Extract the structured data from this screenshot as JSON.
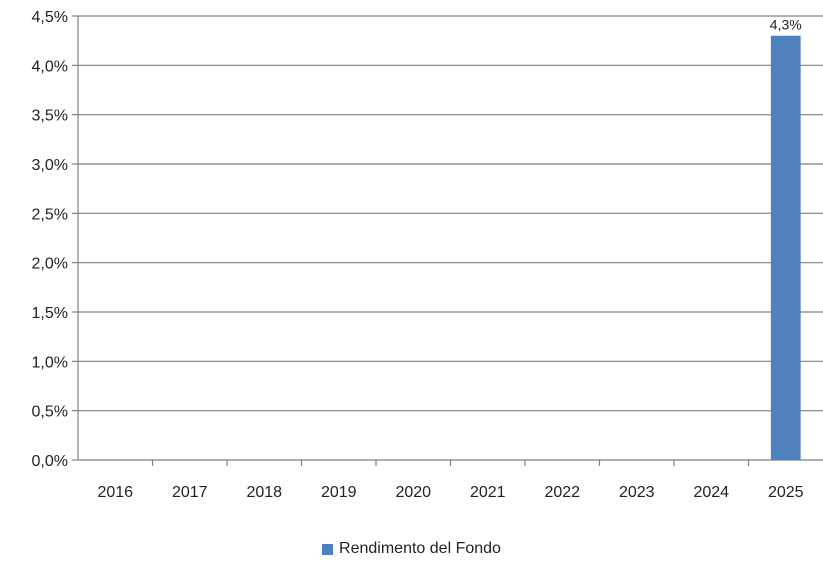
{
  "chart_data": {
    "type": "bar",
    "title": "",
    "xlabel": "",
    "ylabel": "",
    "categories": [
      "2016",
      "2017",
      "2018",
      "2019",
      "2020",
      "2021",
      "2022",
      "2023",
      "2024",
      "2025"
    ],
    "series": [
      {
        "name": "Rendimento del Fondo",
        "values": [
          null,
          null,
          null,
          null,
          null,
          null,
          null,
          null,
          null,
          4.3
        ],
        "data_labels": [
          "",
          "",
          "",
          "",
          "",
          "",
          "",
          "",
          "",
          "4,3%"
        ],
        "color": "#4F81BD"
      }
    ],
    "ylim": [
      0,
      4.5
    ],
    "yticks": [
      0,
      0.5,
      1.0,
      1.5,
      2.0,
      2.5,
      3.0,
      3.5,
      4.0,
      4.5
    ],
    "ytick_labels": [
      "0,0%",
      "0,5%",
      "1,0%",
      "1,5%",
      "2,0%",
      "2,5%",
      "3,0%",
      "3,5%",
      "4,0%",
      "4,5%"
    ],
    "grid": true,
    "legend_position": "bottom",
    "gridline_color": "#808080"
  },
  "legend": {
    "label": "Rendimento del Fondo"
  }
}
